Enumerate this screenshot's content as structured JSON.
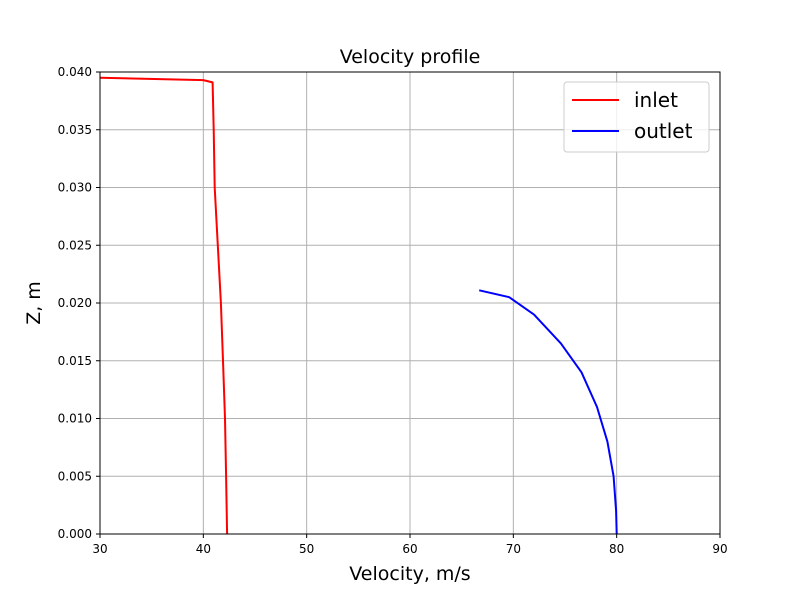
{
  "chart_data": {
    "type": "line",
    "title": "Velocity profile",
    "xlabel": "Velocity, m/s",
    "ylabel": "Z, m",
    "xlim": [
      30,
      90
    ],
    "ylim": [
      0.0,
      0.04
    ],
    "xticks": [
      30,
      40,
      50,
      60,
      70,
      80,
      90
    ],
    "xtick_labels": [
      "30",
      "40",
      "50",
      "60",
      "70",
      "80",
      "90"
    ],
    "yticks": [
      0.0,
      0.005,
      0.01,
      0.015,
      0.02,
      0.025,
      0.03,
      0.035,
      0.04
    ],
    "ytick_labels": [
      "0.000",
      "0.005",
      "0.010",
      "0.015",
      "0.020",
      "0.025",
      "0.030",
      "0.035",
      "0.040"
    ],
    "grid": true,
    "legend_position": "top-right",
    "series": [
      {
        "name": "inlet",
        "color": "#ff0000",
        "x": [
          42.3,
          42.2,
          42.1,
          41.9,
          41.7,
          41.4,
          41.1,
          41.0,
          40.9,
          40.0,
          30.0
        ],
        "y": [
          0.0,
          0.005,
          0.01,
          0.015,
          0.02,
          0.025,
          0.03,
          0.035,
          0.0391,
          0.0393,
          0.0395
        ]
      },
      {
        "name": "outlet",
        "color": "#0000ff",
        "x": [
          80.0,
          79.95,
          79.7,
          79.1,
          78.1,
          76.6,
          74.6,
          72.0,
          69.6,
          66.7
        ],
        "y": [
          0.0,
          0.002,
          0.005,
          0.008,
          0.011,
          0.014,
          0.0165,
          0.019,
          0.0205,
          0.0211
        ]
      }
    ]
  }
}
